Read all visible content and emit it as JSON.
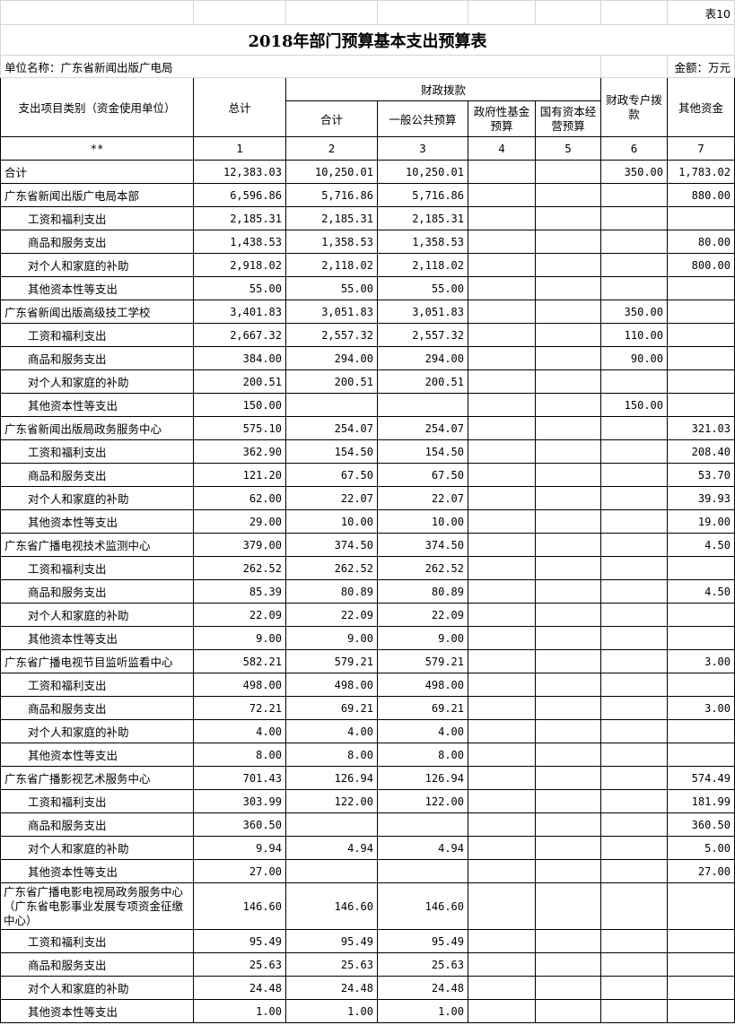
{
  "sheet_label": "表10",
  "title": "2018年部门预算基本支出预算表",
  "unit_name": "单位名称：广东省新闻出版广电局",
  "amount_unit": "金额：万元",
  "headers": {
    "category": "支出项目类别（资金使用单位）",
    "total": "总计",
    "fiscal_group": "财政拨款",
    "fiscal_sum": "合计",
    "general_budget": "一般公共预算",
    "gov_fund": "政府性基金预算",
    "state_capital": "国有资本经营预算",
    "special_account": "财政专户拨款",
    "other_funds": "其他资金"
  },
  "index_row": [
    "**",
    "1",
    "2",
    "3",
    "4",
    "5",
    "6",
    "7"
  ],
  "rows": [
    {
      "label": "合计",
      "sub": false,
      "values": [
        "12,383.03",
        "10,250.01",
        "10,250.01",
        "",
        "",
        "350.00",
        "1,783.02"
      ]
    },
    {
      "label": "广东省新闻出版广电局本部",
      "sub": false,
      "values": [
        "6,596.86",
        "5,716.86",
        "5,716.86",
        "",
        "",
        "",
        "880.00"
      ]
    },
    {
      "label": "工资和福利支出",
      "sub": true,
      "values": [
        "2,185.31",
        "2,185.31",
        "2,185.31",
        "",
        "",
        "",
        ""
      ]
    },
    {
      "label": "商品和服务支出",
      "sub": true,
      "values": [
        "1,438.53",
        "1,358.53",
        "1,358.53",
        "",
        "",
        "",
        "80.00"
      ]
    },
    {
      "label": "对个人和家庭的补助",
      "sub": true,
      "values": [
        "2,918.02",
        "2,118.02",
        "2,118.02",
        "",
        "",
        "",
        "800.00"
      ]
    },
    {
      "label": "其他资本性等支出",
      "sub": true,
      "values": [
        "55.00",
        "55.00",
        "55.00",
        "",
        "",
        "",
        ""
      ]
    },
    {
      "label": "广东省新闻出版高级技工学校",
      "sub": false,
      "values": [
        "3,401.83",
        "3,051.83",
        "3,051.83",
        "",
        "",
        "350.00",
        ""
      ]
    },
    {
      "label": "工资和福利支出",
      "sub": true,
      "values": [
        "2,667.32",
        "2,557.32",
        "2,557.32",
        "",
        "",
        "110.00",
        ""
      ]
    },
    {
      "label": "商品和服务支出",
      "sub": true,
      "values": [
        "384.00",
        "294.00",
        "294.00",
        "",
        "",
        "90.00",
        ""
      ]
    },
    {
      "label": "对个人和家庭的补助",
      "sub": true,
      "values": [
        "200.51",
        "200.51",
        "200.51",
        "",
        "",
        "",
        ""
      ]
    },
    {
      "label": "其他资本性等支出",
      "sub": true,
      "values": [
        "150.00",
        "",
        "",
        "",
        "",
        "150.00",
        ""
      ]
    },
    {
      "label": "广东省新闻出版局政务服务中心",
      "sub": false,
      "values": [
        "575.10",
        "254.07",
        "254.07",
        "",
        "",
        "",
        "321.03"
      ]
    },
    {
      "label": "工资和福利支出",
      "sub": true,
      "values": [
        "362.90",
        "154.50",
        "154.50",
        "",
        "",
        "",
        "208.40"
      ]
    },
    {
      "label": "商品和服务支出",
      "sub": true,
      "values": [
        "121.20",
        "67.50",
        "67.50",
        "",
        "",
        "",
        "53.70"
      ]
    },
    {
      "label": "对个人和家庭的补助",
      "sub": true,
      "values": [
        "62.00",
        "22.07",
        "22.07",
        "",
        "",
        "",
        "39.93"
      ]
    },
    {
      "label": "其他资本性等支出",
      "sub": true,
      "values": [
        "29.00",
        "10.00",
        "10.00",
        "",
        "",
        "",
        "19.00"
      ]
    },
    {
      "label": "广东省广播电视技术监测中心",
      "sub": false,
      "values": [
        "379.00",
        "374.50",
        "374.50",
        "",
        "",
        "",
        "4.50"
      ]
    },
    {
      "label": "工资和福利支出",
      "sub": true,
      "values": [
        "262.52",
        "262.52",
        "262.52",
        "",
        "",
        "",
        ""
      ]
    },
    {
      "label": "商品和服务支出",
      "sub": true,
      "values": [
        "85.39",
        "80.89",
        "80.89",
        "",
        "",
        "",
        "4.50"
      ]
    },
    {
      "label": "对个人和家庭的补助",
      "sub": true,
      "values": [
        "22.09",
        "22.09",
        "22.09",
        "",
        "",
        "",
        ""
      ]
    },
    {
      "label": "其他资本性等支出",
      "sub": true,
      "values": [
        "9.00",
        "9.00",
        "9.00",
        "",
        "",
        "",
        ""
      ]
    },
    {
      "label": "广东省广播电视节目监听监看中心",
      "sub": false,
      "values": [
        "582.21",
        "579.21",
        "579.21",
        "",
        "",
        "",
        "3.00"
      ]
    },
    {
      "label": "工资和福利支出",
      "sub": true,
      "values": [
        "498.00",
        "498.00",
        "498.00",
        "",
        "",
        "",
        ""
      ]
    },
    {
      "label": "商品和服务支出",
      "sub": true,
      "values": [
        "72.21",
        "69.21",
        "69.21",
        "",
        "",
        "",
        "3.00"
      ]
    },
    {
      "label": "对个人和家庭的补助",
      "sub": true,
      "values": [
        "4.00",
        "4.00",
        "4.00",
        "",
        "",
        "",
        ""
      ]
    },
    {
      "label": "其他资本性等支出",
      "sub": true,
      "values": [
        "8.00",
        "8.00",
        "8.00",
        "",
        "",
        "",
        ""
      ]
    },
    {
      "label": "广东省广播影视艺术服务中心",
      "sub": false,
      "values": [
        "701.43",
        "126.94",
        "126.94",
        "",
        "",
        "",
        "574.49"
      ]
    },
    {
      "label": "工资和福利支出",
      "sub": true,
      "values": [
        "303.99",
        "122.00",
        "122.00",
        "",
        "",
        "",
        "181.99"
      ]
    },
    {
      "label": "商品和服务支出",
      "sub": true,
      "values": [
        "360.50",
        "",
        "",
        "",
        "",
        "",
        "360.50"
      ]
    },
    {
      "label": "对个人和家庭的补助",
      "sub": true,
      "values": [
        "9.94",
        "4.94",
        "4.94",
        "",
        "",
        "",
        "5.00"
      ]
    },
    {
      "label": "其他资本性等支出",
      "sub": true,
      "values": [
        "27.00",
        "",
        "",
        "",
        "",
        "",
        "27.00"
      ]
    },
    {
      "label": "广东省广播电影电视局政务服务中心（广东省电影事业发展专项资金征缴中心）",
      "sub": false,
      "tall": true,
      "values": [
        "146.60",
        "146.60",
        "146.60",
        "",
        "",
        "",
        ""
      ]
    },
    {
      "label": "工资和福利支出",
      "sub": true,
      "values": [
        "95.49",
        "95.49",
        "95.49",
        "",
        "",
        "",
        ""
      ]
    },
    {
      "label": "商品和服务支出",
      "sub": true,
      "values": [
        "25.63",
        "25.63",
        "25.63",
        "",
        "",
        "",
        ""
      ]
    },
    {
      "label": "对个人和家庭的补助",
      "sub": true,
      "values": [
        "24.48",
        "24.48",
        "24.48",
        "",
        "",
        "",
        ""
      ]
    },
    {
      "label": "其他资本性等支出",
      "sub": true,
      "values": [
        "1.00",
        "1.00",
        "1.00",
        "",
        "",
        "",
        ""
      ]
    }
  ]
}
